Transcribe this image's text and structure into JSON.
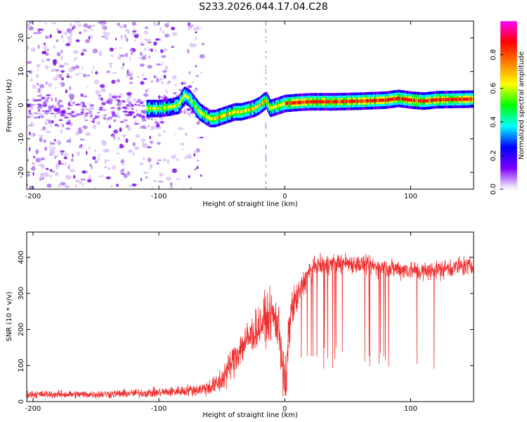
{
  "title": "S233.2026.044.17.04.C28",
  "chart_data": [
    {
      "type": "heatmap",
      "name": "spectrogram",
      "xlabel": "Height of straight line (km)",
      "ylabel": "Frequency (Hz)",
      "xlim": [
        -205,
        150
      ],
      "ylim": [
        -25,
        25
      ],
      "xticks": [
        -200,
        -100,
        0,
        100
      ],
      "xtick_labels": [
        "-200",
        "-100",
        "0",
        "100"
      ],
      "yticks": [
        -20,
        -10,
        0,
        10,
        20
      ],
      "ytick_labels": [
        "-20",
        "-10",
        "0",
        "10",
        "20"
      ],
      "colorbar": {
        "label": "Normalized spectral amplitude",
        "range": [
          0,
          1
        ],
        "ticks": [
          0,
          0.2,
          0.4,
          0.6,
          0.8
        ],
        "tick_labels": [
          "0.0",
          "0.2",
          "0.4",
          "0.6",
          "0.8"
        ],
        "colors": [
          "#ffffff",
          "#7a00ff",
          "#0000ff",
          "#00ffff",
          "#00ff00",
          "#ffff00",
          "#ff8000",
          "#ff0000",
          "#ff00ff"
        ]
      },
      "ridge": {
        "x": [
          -110,
          -100,
          -90,
          -85,
          -80,
          -76,
          -72,
          -68,
          -64,
          -60,
          -56,
          -52,
          -48,
          -44,
          -40,
          -35,
          -30,
          -25,
          -20,
          -17,
          -15,
          -12,
          -8,
          -4,
          0,
          10,
          20,
          40,
          60,
          80,
          90,
          100,
          110,
          120,
          150
        ],
        "y": [
          -1,
          -1,
          -0.5,
          0,
          3,
          2,
          0,
          -2,
          -3,
          -4,
          -4,
          -3.5,
          -3,
          -2.5,
          -2,
          -2,
          -1.5,
          -1,
          0,
          1,
          1.5,
          -1,
          -0.5,
          0,
          0.5,
          0.8,
          1,
          1,
          1.2,
          1.5,
          2,
          1.5,
          1.2,
          1.6,
          1.8
        ]
      },
      "noise_region_x": [
        -205,
        -65
      ]
    },
    {
      "type": "line",
      "name": "snr",
      "xlabel": "Height of straight line (km)",
      "ylabel": "SNR (10 * v/v)",
      "xlim": [
        -205,
        150
      ],
      "ylim": [
        0,
        470
      ],
      "xticks": [
        -200,
        -100,
        0,
        100
      ],
      "xtick_labels": [
        "-200",
        "-100",
        "0",
        "100"
      ],
      "yticks": [
        0,
        100,
        200,
        300,
        400
      ],
      "ytick_labels": [
        "0",
        "100",
        "200",
        "300",
        "400"
      ],
      "color": "#f03030",
      "envelope": {
        "x": [
          -205,
          -150,
          -100,
          -80,
          -65,
          -55,
          -50,
          -45,
          -40,
          -35,
          -30,
          -25,
          -20,
          -15,
          -10,
          -5,
          0,
          5,
          10,
          15,
          20,
          30,
          40,
          50,
          60,
          70,
          80,
          90,
          100,
          110,
          120,
          130,
          140,
          150
        ],
        "base": [
          20,
          20,
          25,
          30,
          35,
          45,
          60,
          90,
          120,
          150,
          170,
          190,
          210,
          230,
          240,
          210,
          60,
          250,
          290,
          330,
          360,
          380,
          385,
          385,
          380,
          375,
          370,
          368,
          365,
          360,
          365,
          370,
          375,
          375
        ],
        "noise": [
          10,
          10,
          12,
          14,
          18,
          25,
          35,
          40,
          45,
          50,
          50,
          50,
          55,
          60,
          60,
          70,
          50,
          50,
          40,
          35,
          30,
          25,
          25,
          25,
          25,
          25,
          25,
          25,
          25,
          25,
          25,
          25,
          25,
          25
        ]
      },
      "dropout_range_x": [
        12,
        122
      ],
      "dropout_floor": 90
    }
  ]
}
